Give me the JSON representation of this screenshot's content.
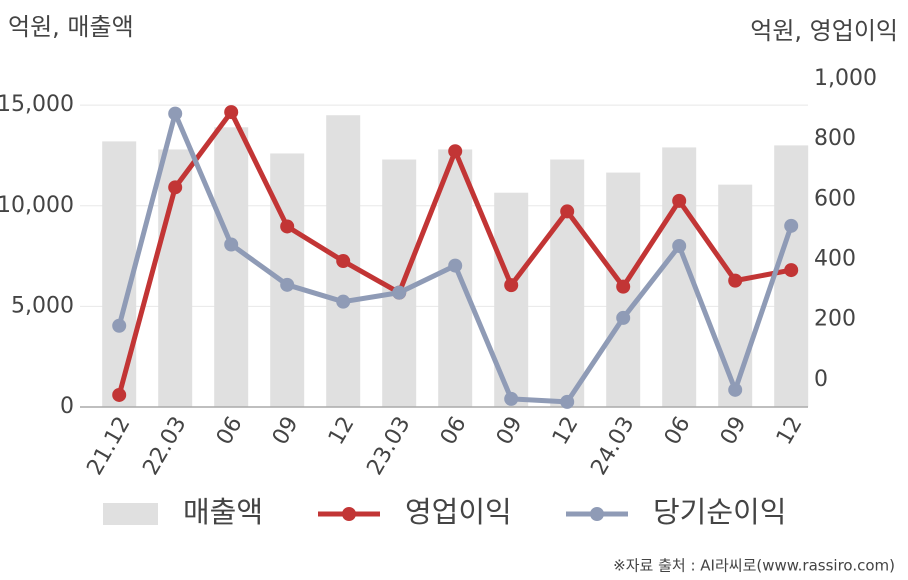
{
  "chart_data": {
    "type": "bar",
    "y_label": "억원, 매출액",
    "y2_label": "억원, 영업이익",
    "source": "※자료 출처 : AI라씨로(www.rassiro.com)",
    "categories": [
      "21.12",
      "22.03",
      "06",
      "09",
      "12",
      "23.03",
      "06",
      "09",
      "12",
      "24.03",
      "06",
      "09",
      "12"
    ],
    "series": [
      {
        "name": "매출액",
        "type": "bar",
        "color": "#e0e0e0",
        "values": [
          13200,
          12800,
          13900,
          12600,
          14500,
          12300,
          12800,
          10650,
          12300,
          11650,
          12900,
          11050,
          13000
        ]
      },
      {
        "name": "영업이익",
        "type": "line",
        "axis": "y2",
        "color": "#c23535",
        "values": [
          -50,
          640,
          890,
          510,
          395,
          290,
          760,
          315,
          560,
          310,
          595,
          330,
          365
        ]
      },
      {
        "name": "당기순이익",
        "type": "line",
        "axis": "y2",
        "color": "#8f9bb6",
        "values": [
          180,
          885,
          450,
          316,
          260,
          290,
          380,
          -63,
          -73,
          206,
          445,
          -33,
          512
        ]
      }
    ],
    "ylim": [
      0,
      16300
    ],
    "yticks": [
      {
        "value": 0,
        "label": "0"
      },
      {
        "value": 5000,
        "label": "5,000"
      },
      {
        "value": 10000,
        "label": "10,000"
      },
      {
        "value": 15000,
        "label": "15,000"
      }
    ],
    "y2lim": [
      -90,
      1000
    ],
    "y2ticks": [
      0,
      200,
      400,
      600,
      800,
      {
        "value": 1000,
        "label": "1,000"
      }
    ],
    "grid": true
  }
}
